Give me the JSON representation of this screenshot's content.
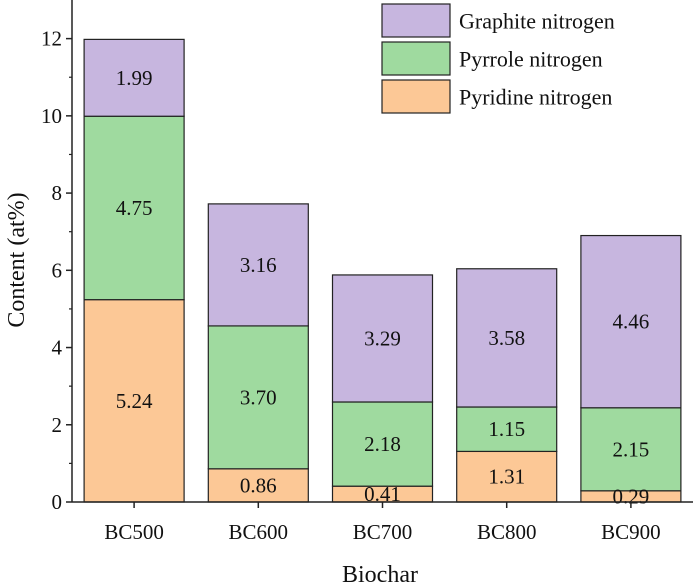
{
  "chart_data": {
    "type": "bar",
    "stacked": true,
    "xlabel": "Biochar",
    "ylabel": "Content (at%)",
    "ylim": [
      0,
      13
    ],
    "yticks": [
      0,
      2,
      4,
      6,
      8,
      10,
      12
    ],
    "categories": [
      "BC500",
      "BC600",
      "BC700",
      "BC800",
      "BC900"
    ],
    "series": [
      {
        "name": "Pyridine nitrogen",
        "color": "#fcc896",
        "values": [
          5.24,
          0.86,
          0.41,
          1.31,
          0.29
        ],
        "labels": [
          "5.24",
          "0.86",
          "0.41",
          "1.31",
          "0.29"
        ]
      },
      {
        "name": "Pyrrole nitrogen",
        "color": "#9fda9f",
        "values": [
          4.75,
          3.7,
          2.18,
          1.15,
          2.15
        ],
        "labels": [
          "4.75",
          "3.70",
          "2.18",
          "1.15",
          "2.15"
        ]
      },
      {
        "name": "Graphite nitrogen",
        "color": "#c7b6df",
        "values": [
          1.99,
          3.16,
          3.29,
          3.58,
          4.46
        ],
        "labels": [
          "1.99",
          "3.16",
          "3.29",
          "3.58",
          "4.46"
        ]
      }
    ],
    "legend_order": [
      "Graphite nitrogen",
      "Pyrrole nitrogen",
      "Pyridine nitrogen"
    ],
    "legend_position": "top-right",
    "grid": false
  }
}
